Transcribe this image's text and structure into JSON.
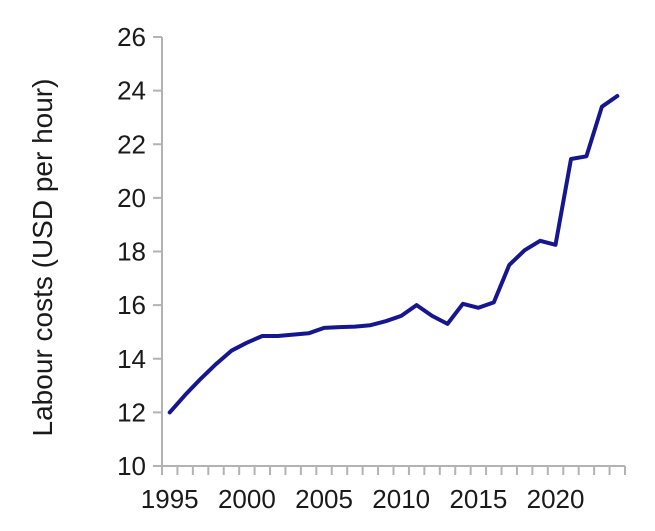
{
  "chart_data": {
    "type": "line",
    "title": "",
    "xlabel": "",
    "ylabel": "Labour costs (USD per hour)",
    "x": [
      1995,
      1996,
      1997,
      1998,
      1999,
      2000,
      2001,
      2002,
      2003,
      2004,
      2005,
      2006,
      2007,
      2008,
      2009,
      2010,
      2011,
      2012,
      2013,
      2014,
      2015,
      2016,
      2017,
      2018,
      2019,
      2020,
      2021,
      2022,
      2023,
      2024
    ],
    "values": [
      12.0,
      12.65,
      13.25,
      13.8,
      14.3,
      14.6,
      14.85,
      14.85,
      14.9,
      14.95,
      15.15,
      15.18,
      15.2,
      15.25,
      15.4,
      15.6,
      16.0,
      15.6,
      15.3,
      16.05,
      15.9,
      16.1,
      17.5,
      18.05,
      18.4,
      18.25,
      21.45,
      21.55,
      23.4,
      23.8
    ],
    "series_name": "Labour costs (USD per hour)",
    "ylim": [
      10,
      26
    ],
    "yticks": [
      10,
      12,
      14,
      16,
      18,
      20,
      22,
      24,
      26
    ],
    "xticks": [
      1995,
      2000,
      2005,
      2010,
      2015,
      2020
    ],
    "grid": false,
    "legend": "none",
    "line_color": "#16168f",
    "axis_color": "#b3b3b3",
    "text_color": "#1a1a1a"
  },
  "layout_note": "single line chart, left and bottom axes only, minor x ticks each year"
}
